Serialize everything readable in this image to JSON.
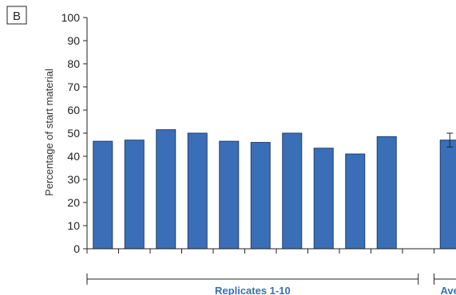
{
  "panel_label": "B",
  "colors": {
    "bar": "#3a6fb7",
    "bar_edge": "#1f3f72",
    "axis": "#222222",
    "group_label": "#3a6fb7"
  },
  "chart_data": {
    "type": "bar",
    "ylabel": "Percentage of start material",
    "ylim": [
      0,
      100
    ],
    "yticks": [
      0,
      10,
      20,
      30,
      40,
      50,
      60,
      70,
      80,
      90,
      100
    ],
    "grid": false,
    "values": [
      46.5,
      47,
      51.5,
      50,
      46.5,
      46,
      50,
      43.5,
      41,
      48.5,
      null,
      47
    ],
    "error": [
      null,
      null,
      null,
      null,
      null,
      null,
      null,
      null,
      null,
      null,
      null,
      3
    ],
    "groups": [
      {
        "label": "Replicates 1-10",
        "start": 0,
        "end": 9
      },
      {
        "label": "Average",
        "start": 11,
        "end": 11
      }
    ]
  }
}
